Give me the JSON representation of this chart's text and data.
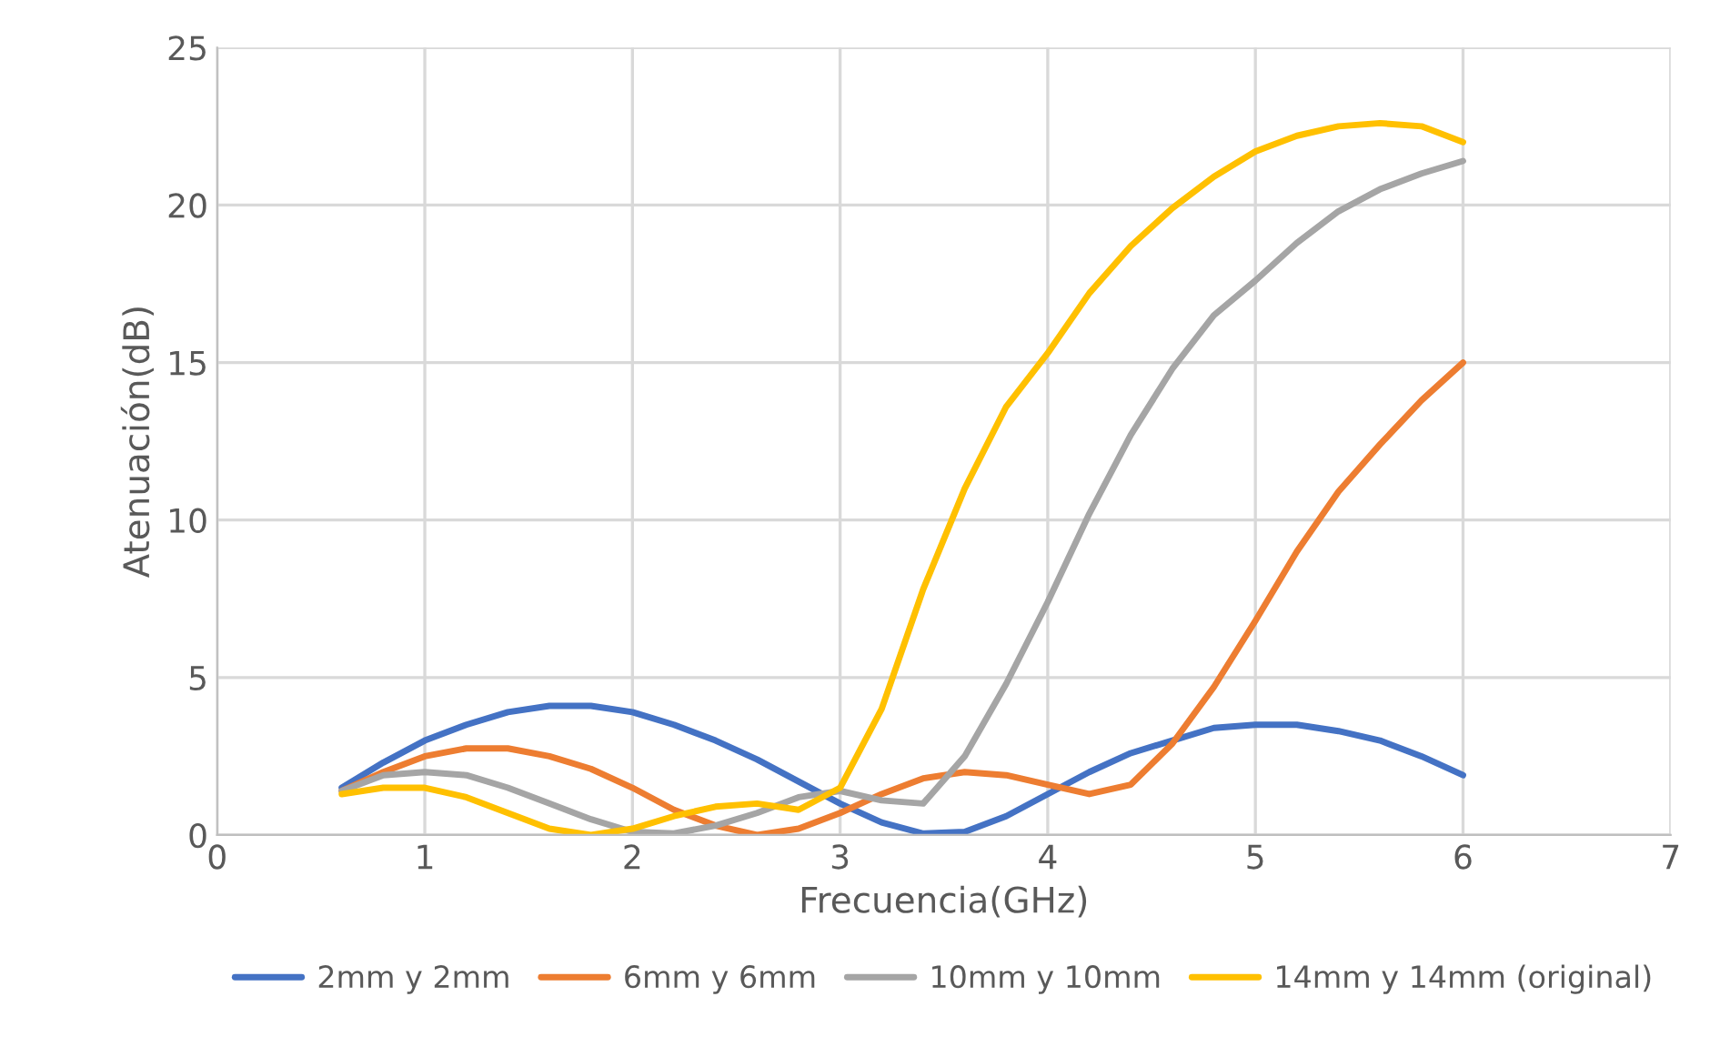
{
  "chart_data": {
    "type": "line",
    "xlabel": "Frecuencia(GHz)",
    "ylabel": "Atenuación(dB)",
    "x": [
      0.6,
      0.8,
      1.0,
      1.2,
      1.4,
      1.6,
      1.8,
      2.0,
      2.2,
      2.4,
      2.6,
      2.8,
      3.0,
      3.2,
      3.4,
      3.6,
      3.8,
      4.0,
      4.2,
      4.4,
      4.6,
      4.8,
      5.0,
      5.2,
      5.4,
      5.6,
      5.8,
      6.0
    ],
    "series": [
      {
        "name": "2mm y 2mm",
        "color": "#4472c4",
        "values": [
          1.5,
          2.3,
          3.0,
          3.5,
          3.9,
          4.1,
          4.1,
          3.9,
          3.5,
          3.0,
          2.4,
          1.7,
          1.0,
          0.4,
          0.05,
          0.1,
          0.6,
          1.3,
          2.0,
          2.6,
          3.0,
          3.4,
          3.5,
          3.5,
          3.3,
          3.0,
          2.5,
          1.9
        ]
      },
      {
        "name": "6mm y 6mm",
        "color": "#ed7d31",
        "values": [
          1.4,
          2.0,
          2.5,
          2.75,
          2.75,
          2.5,
          2.1,
          1.5,
          0.8,
          0.3,
          0.0,
          0.2,
          0.7,
          1.3,
          1.8,
          2.0,
          1.9,
          1.6,
          1.3,
          1.6,
          2.9,
          4.7,
          6.8,
          9.0,
          10.9,
          12.4,
          13.8,
          15.0
        ]
      },
      {
        "name": "10mm y 10mm",
        "color": "#a5a5a5",
        "values": [
          1.4,
          1.9,
          2.0,
          1.9,
          1.5,
          1.0,
          0.5,
          0.1,
          0.05,
          0.3,
          0.7,
          1.2,
          1.4,
          1.1,
          1.0,
          2.5,
          4.8,
          7.4,
          10.2,
          12.7,
          14.8,
          16.5,
          17.6,
          18.8,
          19.8,
          20.5,
          21.0,
          21.4
        ]
      },
      {
        "name": "14mm y 14mm (original)",
        "color": "#ffc000",
        "values": [
          1.3,
          1.5,
          1.5,
          1.2,
          0.7,
          0.2,
          0.0,
          0.2,
          0.6,
          0.9,
          1.0,
          0.8,
          1.5,
          4.0,
          7.8,
          11.0,
          13.6,
          15.3,
          17.2,
          18.7,
          19.9,
          20.9,
          21.7,
          22.2,
          22.5,
          22.6,
          22.5,
          22.0
        ]
      }
    ],
    "xlim": [
      0,
      7
    ],
    "xticks": [
      0,
      1,
      2,
      3,
      4,
      5,
      6,
      7
    ],
    "ylim": [
      0,
      25
    ],
    "yticks": [
      0,
      5,
      10,
      15,
      20,
      25
    ],
    "grid": true,
    "legend": "bottom",
    "marker": "none",
    "line_style": "solid"
  }
}
